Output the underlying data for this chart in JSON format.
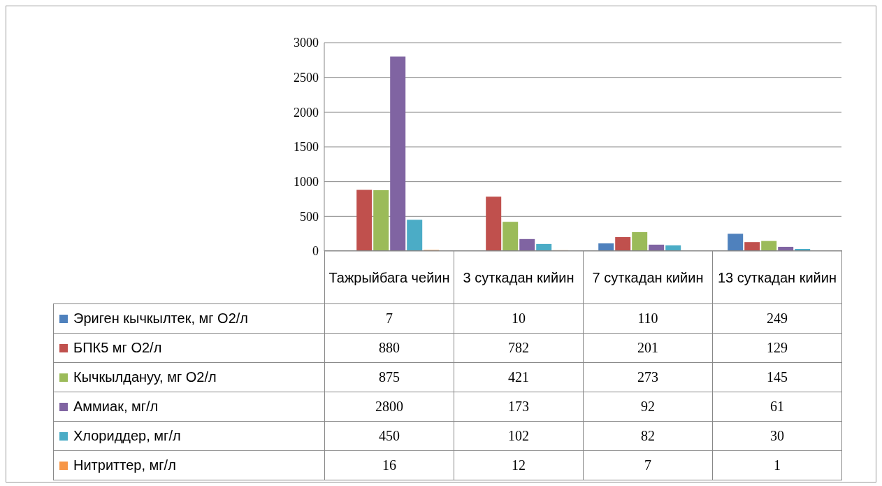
{
  "chart_data": {
    "type": "bar",
    "categories": [
      "Тажрыйбага чейин",
      "3 суткадан кийин",
      "7 суткадан кийин",
      "13 суткадан кийин"
    ],
    "series": [
      {
        "name": "Эриген кычкылтек, мг О2/л",
        "color": "#4f81bd",
        "values": [
          7,
          10,
          110,
          249
        ]
      },
      {
        "name": "БПК5 мг О2/л",
        "color": "#c0504d",
        "values": [
          880,
          782,
          201,
          129
        ]
      },
      {
        "name": "Кычкылдануу, мг О2/л",
        "color": "#9bbb59",
        "values": [
          875,
          421,
          273,
          145
        ]
      },
      {
        "name": "Аммиак, мг/л",
        "color": "#8064a2",
        "values": [
          2800,
          173,
          92,
          61
        ]
      },
      {
        "name": "Хлориддер, мг/л",
        "color": "#4bacc6",
        "values": [
          450,
          102,
          82,
          30
        ]
      },
      {
        "name": "Нитриттер, мг/л",
        "color": "#f79646",
        "values": [
          16,
          12,
          7,
          1
        ]
      }
    ],
    "ylim": [
      0,
      3000
    ],
    "yticks": [
      0,
      500,
      1000,
      1500,
      2000,
      2500,
      3000
    ],
    "grid": "y",
    "legend": "bottom",
    "data_labels": true
  }
}
